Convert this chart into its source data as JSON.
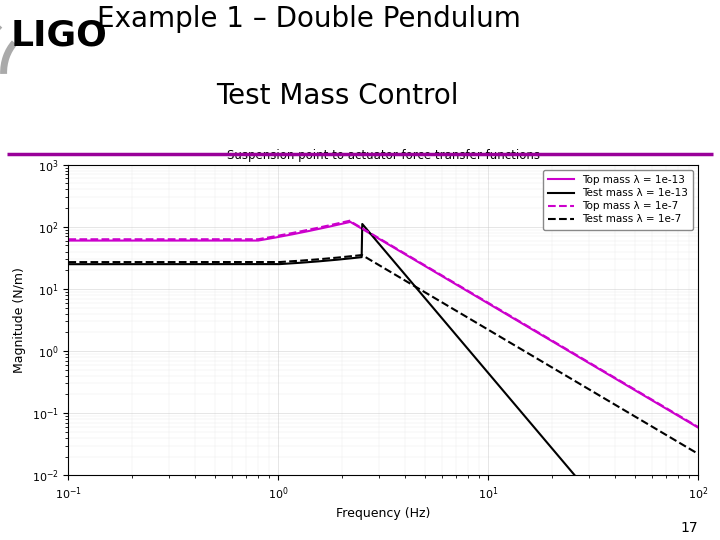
{
  "title_line1": "Example 1 – Double Pendulum",
  "title_line2": "Test Mass Control",
  "slide_number": "17",
  "plot_title": "Suspension point to actuator force transfer functions",
  "xlabel": "Frequency (Hz)",
  "ylabel": "Magnitude (N/m)",
  "background_color": "#ffffff",
  "divider_color": "#990099",
  "grid_color": "#cccccc",
  "grid_alpha": 0.7,
  "plot_bg_color": "#ffffff",
  "magenta": "#cc00cc",
  "black": "#000000",
  "legend_labels": [
    "Top mass λ = 1e-13",
    "Test mass λ = 1e-13",
    "Top mass λ = 1e-7",
    "Test mass λ = 1e-7"
  ],
  "legend_colors": [
    "#cc00cc",
    "#000000",
    "#cc00cc",
    "#000000"
  ],
  "legend_linestyles": [
    "-",
    "-",
    "--",
    "--"
  ]
}
